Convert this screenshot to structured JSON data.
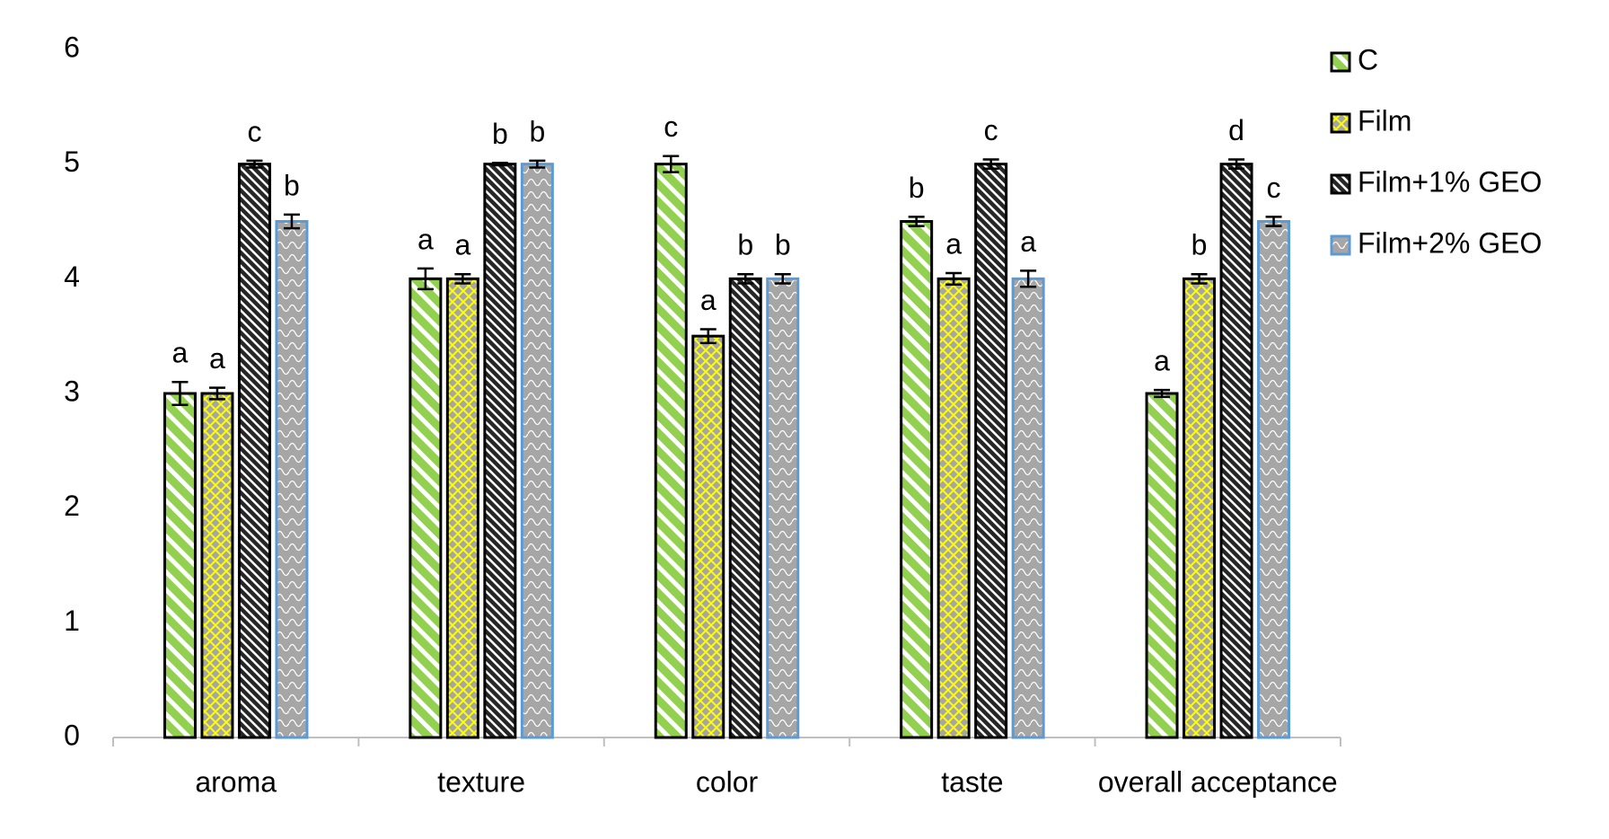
{
  "chart_data": {
    "type": "bar",
    "categories": [
      "aroma",
      "texture",
      "color",
      "taste",
      "overall acceptance"
    ],
    "series": [
      {
        "name": "C",
        "color": "#92d050",
        "stroke": "#000000",
        "values": [
          3,
          4,
          5,
          4.5,
          3
        ],
        "errors": [
          0.1,
          0.09,
          0.07,
          0.04,
          0.03
        ],
        "letters": [
          "a",
          "a",
          "c",
          "b",
          "a"
        ]
      },
      {
        "name": "Film",
        "color": "#a6a6a6",
        "stroke": "#000000",
        "values": [
          3,
          4,
          3.5,
          4,
          4
        ],
        "errors": [
          0.05,
          0.04,
          0.06,
          0.05,
          0.04
        ],
        "letters": [
          "a",
          "a",
          "a",
          "a",
          "b"
        ]
      },
      {
        "name": "Film+1% GEO",
        "color": "#262626",
        "stroke": "#000000",
        "values": [
          5,
          5,
          4,
          5,
          5
        ],
        "errors": [
          0.03,
          0.01,
          0.04,
          0.04,
          0.04
        ],
        "letters": [
          "c",
          "b",
          "b",
          "c",
          "d"
        ]
      },
      {
        "name": "Film+2% GEO",
        "color": "#a6a6a6",
        "stroke": "#5b9bd5",
        "values": [
          4.5,
          5,
          4,
          4,
          4.5
        ],
        "errors": [
          0.06,
          0.03,
          0.04,
          0.07,
          0.04
        ],
        "letters": [
          "b",
          "b",
          "b",
          "a",
          "c"
        ]
      }
    ],
    "ylim": [
      0,
      6
    ],
    "yticks": [
      0,
      1,
      2,
      3,
      4,
      5,
      6
    ],
    "grid": false,
    "legend": "right"
  }
}
